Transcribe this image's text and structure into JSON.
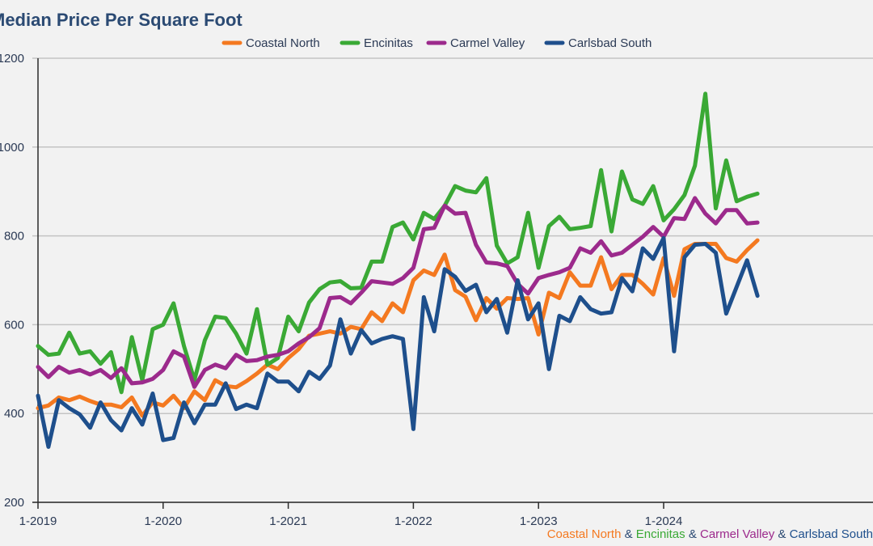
{
  "chart_data": {
    "type": "line",
    "title": "Median Price Per Square Foot",
    "ylim": [
      200,
      1200
    ],
    "y_ticks": [
      "200",
      "400",
      "600",
      "800",
      "1000",
      "1200"
    ],
    "x_tick_labels": [
      "1-2019",
      "1-2020",
      "1-2021",
      "1-2022",
      "1-2023",
      "1-2024"
    ],
    "grid": true,
    "legend_position": "top-center",
    "x_start": "2019-01",
    "x_end": "2024-12",
    "series": [
      {
        "name": "Coastal North",
        "color": "#f47920",
        "values": [
          412,
          418,
          436,
          430,
          438,
          428,
          420,
          420,
          414,
          436,
          395,
          425,
          418,
          440,
          412,
          450,
          430,
          475,
          462,
          459,
          473,
          490,
          510,
          500,
          525,
          545,
          575,
          580,
          585,
          580,
          595,
          590,
          628,
          608,
          648,
          628,
          700,
          722,
          712,
          758,
          678,
          663,
          610,
          660,
          636,
          660,
          658,
          660,
          578,
          672,
          660,
          718,
          688,
          688,
          752,
          680,
          712,
          712,
          692,
          668,
          750,
          665,
          770,
          782,
          782,
          782,
          750,
          742,
          768,
          790
        ]
      },
      {
        "name": "Encinitas",
        "color": "#3aa935",
        "values": [
          552,
          532,
          535,
          582,
          535,
          540,
          512,
          538,
          448,
          572,
          475,
          590,
          600,
          648,
          552,
          475,
          565,
          618,
          615,
          580,
          535,
          635,
          510,
          525,
          618,
          585,
          650,
          680,
          695,
          698,
          682,
          683,
          742,
          742,
          820,
          830,
          792,
          852,
          838,
          868,
          912,
          902,
          898,
          930,
          778,
          738,
          752,
          852,
          728,
          822,
          843,
          815,
          818,
          822,
          948,
          810,
          945,
          882,
          872,
          912,
          835,
          860,
          892,
          958,
          1120,
          862,
          970,
          878,
          888,
          895
        ]
      },
      {
        "name": "Carmel Valley",
        "color": "#9c2a8c",
        "values": [
          505,
          482,
          505,
          492,
          498,
          488,
          498,
          480,
          502,
          468,
          470,
          478,
          498,
          540,
          528,
          460,
          498,
          510,
          502,
          532,
          518,
          520,
          528,
          532,
          540,
          558,
          572,
          592,
          660,
          662,
          648,
          672,
          698,
          695,
          692,
          705,
          728,
          815,
          818,
          868,
          850,
          852,
          780,
          740,
          738,
          732,
          692,
          670,
          705,
          712,
          718,
          728,
          772,
          762,
          788,
          756,
          762,
          780,
          798,
          820,
          798,
          840,
          838,
          885,
          850,
          828,
          858,
          858,
          828,
          830
        ]
      },
      {
        "name": "Carlsbad South",
        "color": "#1e4f8c",
        "values": [
          440,
          325,
          430,
          412,
          398,
          368,
          425,
          385,
          362,
          412,
          375,
          445,
          340,
          345,
          425,
          378,
          420,
          420,
          468,
          410,
          420,
          412,
          490,
          472,
          472,
          450,
          494,
          478,
          508,
          612,
          535,
          588,
          558,
          568,
          574,
          568,
          365,
          662,
          585,
          725,
          708,
          676,
          690,
          628,
          658,
          582,
          700,
          612,
          648,
          500,
          620,
          608,
          662,
          635,
          625,
          628,
          705,
          675,
          772,
          748,
          795,
          540,
          752,
          780,
          782,
          762,
          625,
          685,
          745,
          665
        ]
      }
    ],
    "footer_caption": [
      {
        "text": "Coastal North",
        "color": "#f47920"
      },
      {
        "text": " & ",
        "color": "#2b4a73"
      },
      {
        "text": "Encinitas",
        "color": "#3aa935"
      },
      {
        "text": " & ",
        "color": "#2b4a73"
      },
      {
        "text": "Carmel Valley",
        "color": "#9c2a8c"
      },
      {
        "text": " & ",
        "color": "#2b4a73"
      },
      {
        "text": "Carlsbad South",
        "color": "#1e4f8c"
      }
    ]
  }
}
